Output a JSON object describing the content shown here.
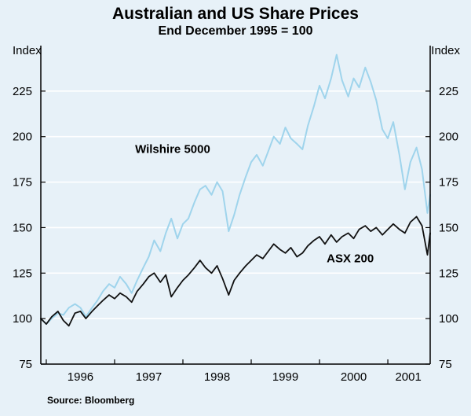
{
  "chart": {
    "title": "Australian and US Share Prices",
    "subtitle": "End December 1995 = 100",
    "axis_unit_left": "Index",
    "axis_unit_right": "Index",
    "source": "Source: Bloomberg"
  },
  "chart_data": {
    "type": "line",
    "title": "Australian and US Share Prices",
    "subtitle": "End December 1995 = 100",
    "ylabel": "Index",
    "ylim": [
      75,
      250
    ],
    "yticks": [
      75,
      100,
      125,
      150,
      175,
      200,
      225
    ],
    "xlim": [
      1995.92,
      2001.62
    ],
    "xticks": [
      {
        "label": "1996",
        "pos": 1996.5
      },
      {
        "label": "1997",
        "pos": 1997.5
      },
      {
        "label": "1998",
        "pos": 1998.5
      },
      {
        "label": "1999",
        "pos": 1999.5
      },
      {
        "label": "2000",
        "pos": 2000.5
      },
      {
        "label": "2001",
        "pos": 2001.3
      }
    ],
    "year_boundary_ticks": [
      1996,
      1997,
      1998,
      1999,
      2000,
      2001
    ],
    "grid": "horizontal white gridlines on pale blue background",
    "legend_position": "inline-annotations",
    "background_color": "#e7f1f8",
    "gridline_color": "#ffffff",
    "source": "Source: Bloomberg",
    "x": [
      1995.92,
      1996.0,
      1996.08,
      1996.17,
      1996.25,
      1996.33,
      1996.42,
      1996.5,
      1996.58,
      1996.67,
      1996.75,
      1996.83,
      1996.92,
      1997.0,
      1997.08,
      1997.17,
      1997.25,
      1997.33,
      1997.42,
      1997.5,
      1997.58,
      1997.67,
      1997.75,
      1997.83,
      1997.92,
      1998.0,
      1998.08,
      1998.17,
      1998.25,
      1998.33,
      1998.42,
      1998.5,
      1998.58,
      1998.67,
      1998.75,
      1998.83,
      1998.92,
      1999.0,
      1999.08,
      1999.17,
      1999.25,
      1999.33,
      1999.42,
      1999.5,
      1999.58,
      1999.67,
      1999.75,
      1999.83,
      1999.92,
      2000.0,
      2000.08,
      2000.17,
      2000.25,
      2000.33,
      2000.42,
      2000.5,
      2000.58,
      2000.67,
      2000.75,
      2000.83,
      2000.92,
      2001.0,
      2001.08,
      2001.17,
      2001.25,
      2001.33,
      2001.42,
      2001.5,
      2001.58,
      2001.62
    ],
    "series": [
      {
        "name": "Wilshire 5000",
        "color": "#9fd4ec",
        "stroke_width": 2,
        "label_pos": {
          "x": 1997.85,
          "y": 191
        },
        "values": [
          100,
          97,
          100,
          103,
          102,
          106,
          108,
          106,
          101,
          106,
          110,
          115,
          119,
          117,
          123,
          119,
          114,
          121,
          128,
          134,
          143,
          137,
          147,
          155,
          144,
          152,
          155,
          164,
          171,
          173,
          168,
          175,
          170,
          148,
          157,
          168,
          178,
          186,
          190,
          184,
          192,
          200,
          196,
          205,
          199,
          196,
          193,
          206,
          217,
          228,
          221,
          232,
          245,
          231,
          222,
          232,
          227,
          238,
          230,
          220,
          204,
          199,
          208,
          190,
          171,
          186,
          194,
          182,
          158,
          168
        ]
      },
      {
        "name": "ASX 200",
        "color": "#111111",
        "stroke_width": 1.8,
        "label_pos": {
          "x": 2000.45,
          "y": 131
        },
        "values": [
          100,
          97,
          101,
          104,
          99,
          96,
          103,
          104,
          100,
          104,
          107,
          110,
          113,
          111,
          114,
          112,
          109,
          115,
          119,
          123,
          125,
          120,
          124,
          112,
          117,
          121,
          124,
          128,
          132,
          128,
          125,
          129,
          122,
          113,
          121,
          125,
          129,
          132,
          135,
          133,
          137,
          141,
          138,
          136,
          139,
          134,
          136,
          140,
          143,
          145,
          141,
          146,
          142,
          145,
          147,
          144,
          149,
          151,
          148,
          150,
          146,
          149,
          152,
          149,
          147,
          153,
          156,
          151,
          135,
          147
        ]
      }
    ]
  }
}
